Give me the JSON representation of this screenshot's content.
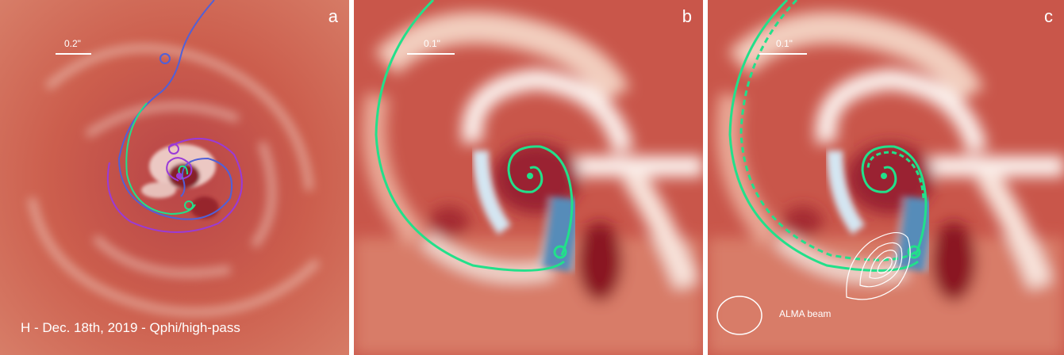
{
  "panels": [
    {
      "letter": "a",
      "scale": "0.2\""
    },
    {
      "letter": "b",
      "scale": "0.1\""
    },
    {
      "letter": "c",
      "scale": "0.1\""
    }
  ],
  "caption": "H - Dec. 18th, 2019 - Qphi/high-pass",
  "beam_label": "ALMA beam",
  "colors": {
    "background_red": "#c8584a",
    "deep_red": "#8a1a24",
    "white_feature": "#f6ece8",
    "blue_feature": "#1f5f99",
    "spiral_green": "#22e08a",
    "spiral_blue": "#5060d8",
    "spiral_purple": "#9a3ad8",
    "contour": "#ffffff"
  }
}
